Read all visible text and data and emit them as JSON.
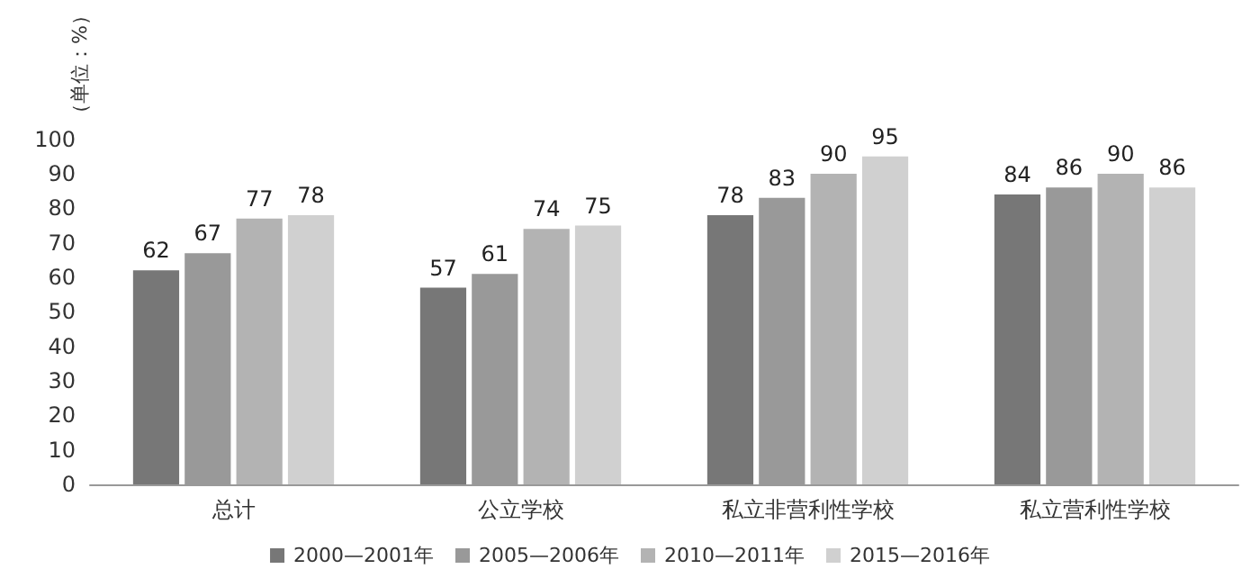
{
  "chart_data": {
    "type": "bar",
    "ylabel": "（单位：%）",
    "categories": [
      "总计",
      "公立学校",
      "私立非营利性学校",
      "私立营利性学校"
    ],
    "series": [
      {
        "name": "2000—2001年",
        "color": "#777777",
        "values": [
          62,
          57,
          78,
          84
        ]
      },
      {
        "name": "2005—2006年",
        "color": "#999999",
        "values": [
          67,
          61,
          83,
          86
        ]
      },
      {
        "name": "2010—2011年",
        "color": "#b3b3b3",
        "values": [
          77,
          74,
          90,
          90
        ]
      },
      {
        "name": "2015—2016年",
        "color": "#d0d0d0",
        "values": [
          78,
          75,
          95,
          86
        ]
      }
    ],
    "ylim": [
      0,
      100
    ],
    "yticks": [
      0,
      10,
      20,
      30,
      40,
      50,
      60,
      70,
      80,
      90,
      100
    ],
    "grid": false,
    "legend": "bottom",
    "data_labels": true
  }
}
